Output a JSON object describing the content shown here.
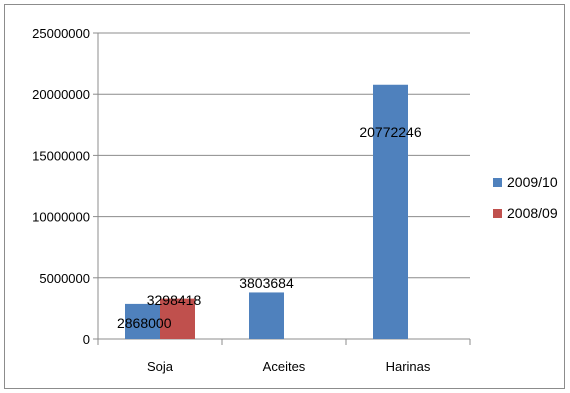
{
  "chart_data": {
    "type": "bar",
    "title": "",
    "xlabel": "",
    "ylabel": "",
    "categories": [
      "Soja",
      "Aceites",
      "Harinas"
    ],
    "series": [
      {
        "name": "2009/10",
        "color": "#4f81bd",
        "values": [
          2868000,
          3803684,
          20772246
        ],
        "labels": [
          "2868000",
          "3803684",
          "20772246"
        ]
      },
      {
        "name": "2008/09",
        "color": "#c0504d",
        "values": [
          3298418,
          null,
          null
        ],
        "labels": [
          "3298418",
          "",
          ""
        ]
      }
    ],
    "ylim": [
      0,
      25000000
    ],
    "yticks": [
      0,
      5000000,
      10000000,
      15000000,
      20000000,
      25000000
    ],
    "ytick_labels": [
      "0",
      "5000000",
      "10000000",
      "15000000",
      "20000000",
      "25000000"
    ],
    "grid": true,
    "legend_position": "right"
  }
}
